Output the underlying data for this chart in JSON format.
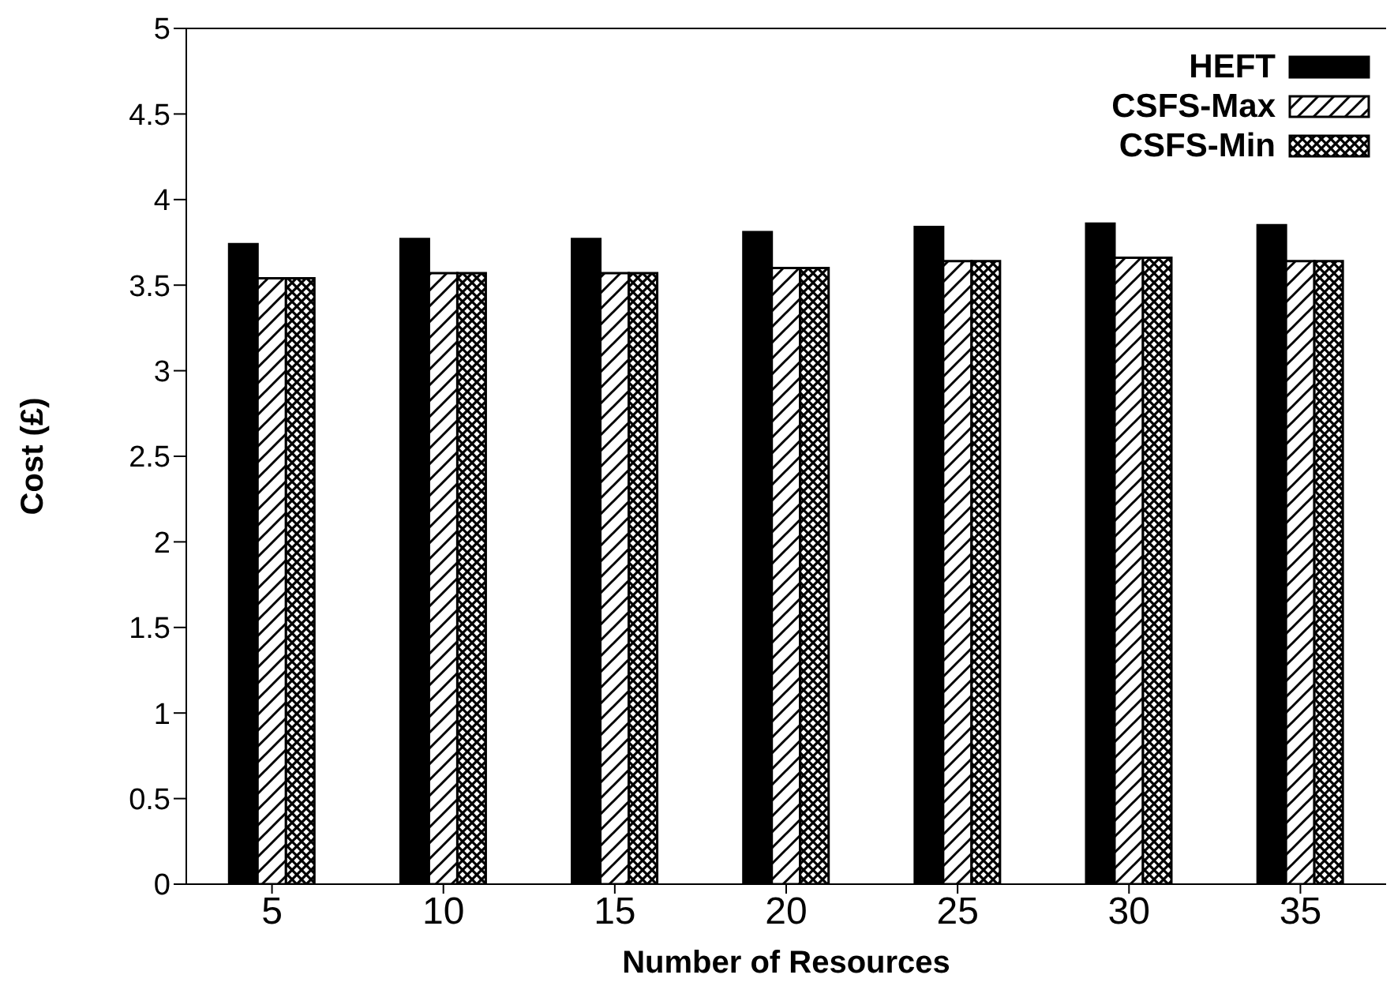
{
  "chart_data": {
    "type": "bar",
    "xlabel": "Number of Resources",
    "ylabel": "Cost (£)",
    "categories": [
      "5",
      "10",
      "15",
      "20",
      "25",
      "30",
      "35"
    ],
    "series": [
      {
        "name": "HEFT",
        "color": "#000000",
        "values": [
          3.74,
          3.77,
          3.77,
          3.81,
          3.84,
          3.86,
          3.85
        ]
      },
      {
        "name": "CSFS-Max",
        "color": "#000000",
        "values": [
          3.54,
          3.57,
          3.57,
          3.6,
          3.64,
          3.66,
          3.64
        ]
      },
      {
        "name": "CSFS-Min",
        "color": "#000000",
        "values": [
          3.54,
          3.57,
          3.57,
          3.6,
          3.64,
          3.66,
          3.64
        ]
      }
    ],
    "ylim": [
      0,
      5
    ],
    "yticks": [
      0,
      0.5,
      1,
      1.5,
      2,
      2.5,
      3,
      3.5,
      4,
      4.5,
      5
    ],
    "legend": "top right"
  }
}
